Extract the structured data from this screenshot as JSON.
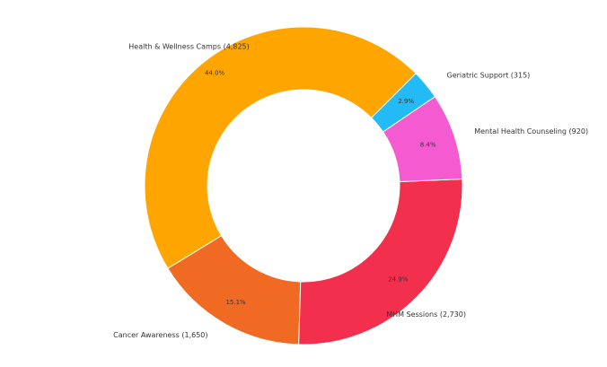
{
  "chart_data": {
    "type": "pie",
    "donut": true,
    "legend": "none",
    "slices": [
      {
        "label": "Health & Wellness Camps (4,825)",
        "value": 4825,
        "pct_label": "44.0%",
        "color": "#FFA500"
      },
      {
        "label": "Cancer Awareness (1,650)",
        "value": 1650,
        "pct_label": "15.1%",
        "color": "#F06A23"
      },
      {
        "label": "MHM Sessions (2,730)",
        "value": 2730,
        "pct_label": "24.9%",
        "color": "#F2304E"
      },
      {
        "label": "Mental Health Counseling (920)",
        "value": 920,
        "pct_label": "8.4%",
        "color": "#F55BD0"
      },
      {
        "label": "Geriatric Support (315)",
        "value": 315,
        "pct_label": "2.9%",
        "color": "#22BBF5"
      }
    ]
  }
}
